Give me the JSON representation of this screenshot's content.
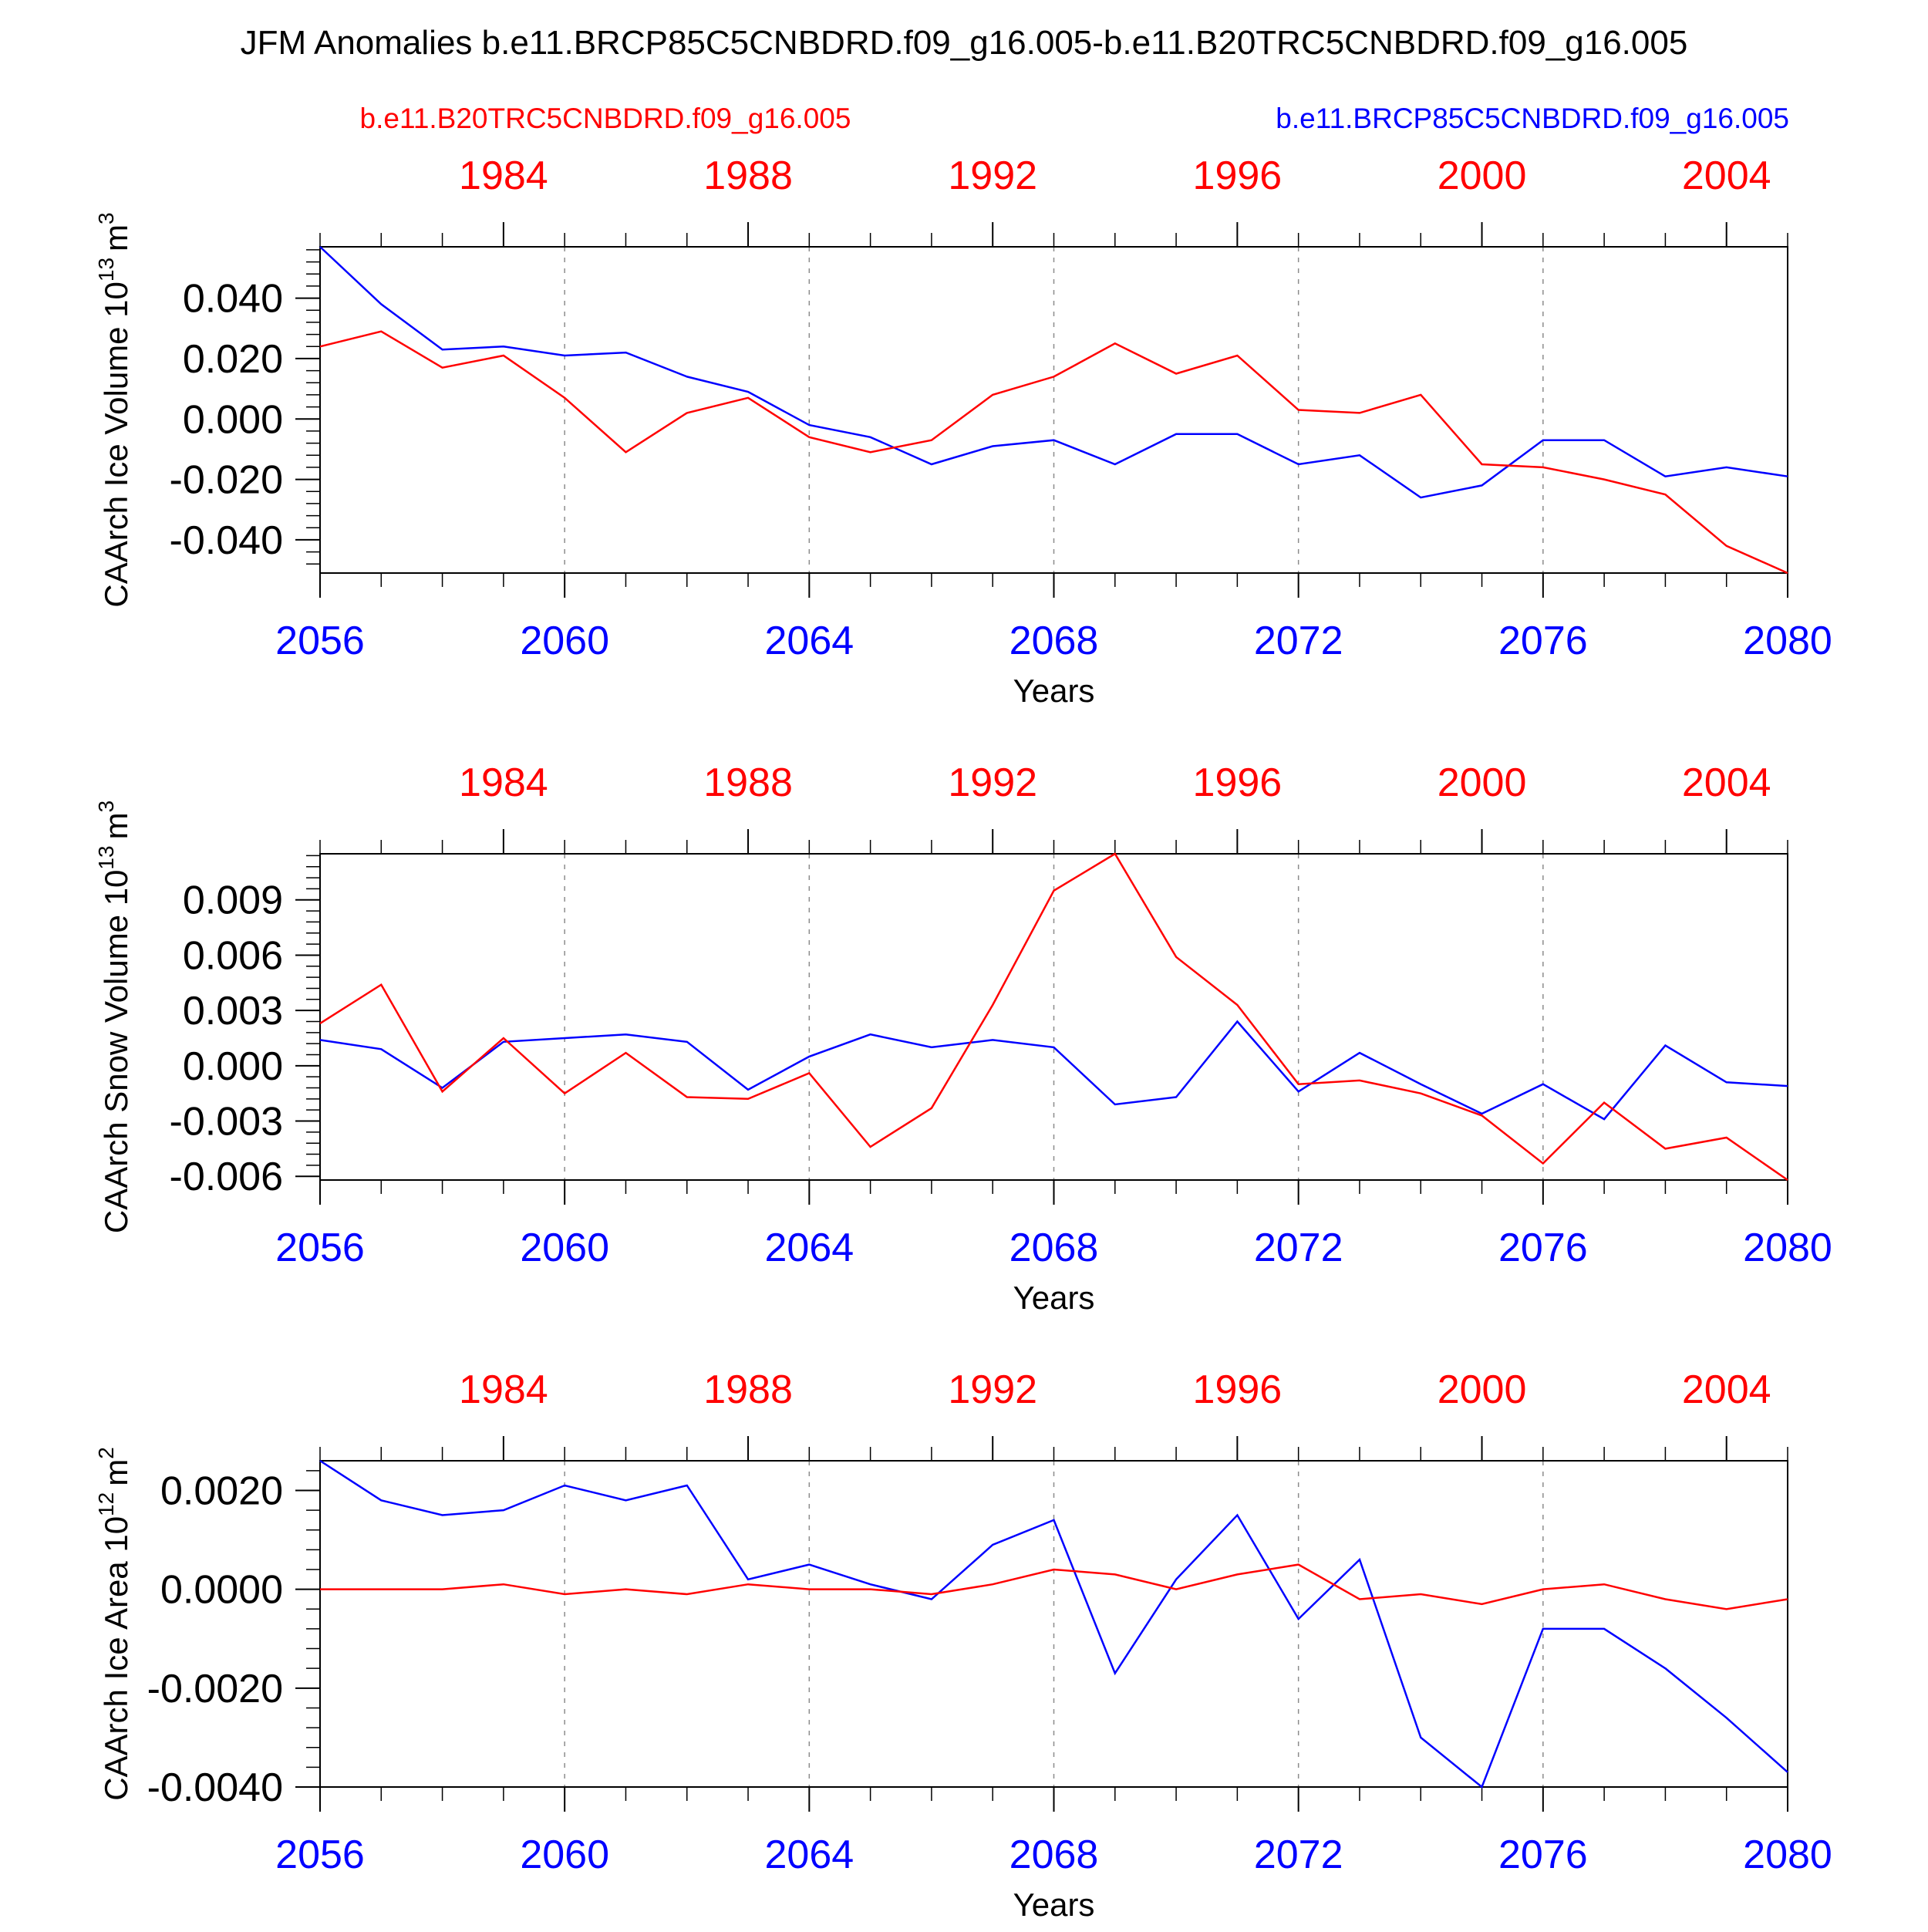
{
  "title": "JFM Anomalies b.e11.BRCP85C5CNBDRD.f09_g16.005-b.e11.B20TRC5CNBDRD.f09_g16.005",
  "legend": {
    "left": {
      "text": "b.e11.B20TRC5CNBDRD.f09_g16.005",
      "color": "#ff0000"
    },
    "right": {
      "text": "b.e11.BRCP85C5CNBDRD.f09_g16.005",
      "color": "#0000ff"
    }
  },
  "colors": {
    "red_series": "#ff0000",
    "blue_series": "#0000ff",
    "axis": "#000000",
    "grid": "#8c8c8c"
  },
  "chart_data": [
    {
      "type": "line",
      "ylabel": "CAArch Ice Volume 10",
      "ylabel_exp": "13",
      "ylabel_unit": "m",
      "ylabel_unit_exp": "3",
      "xlabel": "Years",
      "xlim": [
        2056,
        2080
      ],
      "ylim": [
        -0.051,
        0.057
      ],
      "yticks": [
        0.04,
        0.02,
        0.0,
        -0.02,
        -0.04
      ],
      "ytick_labels": [
        "0.040",
        "0.020",
        "0.000",
        "-0.020",
        "-0.040"
      ],
      "ytick_minor": 0.004,
      "bottom_ticks": [
        2056,
        2060,
        2064,
        2068,
        2072,
        2076,
        2080
      ],
      "top_ticks": [
        1984,
        1988,
        1992,
        1996,
        2000,
        2004
      ],
      "top_offset": 75,
      "grid_x": [
        2060,
        2064,
        2068,
        2072,
        2076
      ],
      "x": [
        2056,
        2057,
        2058,
        2059,
        2060,
        2061,
        2062,
        2063,
        2064,
        2065,
        2066,
        2067,
        2068,
        2069,
        2070,
        2071,
        2072,
        2073,
        2074,
        2075,
        2076,
        2077,
        2078,
        2079,
        2080
      ],
      "series": [
        {
          "color": "#0000ff",
          "values": [
            0.057,
            0.038,
            0.023,
            0.024,
            0.021,
            0.022,
            0.014,
            0.009,
            -0.002,
            -0.006,
            -0.015,
            -0.009,
            -0.007,
            -0.015,
            -0.005,
            -0.005,
            -0.015,
            -0.012,
            -0.026,
            -0.022,
            -0.007,
            -0.007,
            -0.019,
            -0.016,
            -0.019
          ]
        },
        {
          "color": "#ff0000",
          "values": [
            0.024,
            0.029,
            0.017,
            0.021,
            0.007,
            -0.011,
            0.002,
            0.007,
            -0.006,
            -0.011,
            -0.007,
            0.008,
            0.014,
            0.025,
            0.015,
            0.021,
            0.003,
            0.002,
            0.008,
            -0.015,
            -0.016,
            -0.02,
            -0.025,
            -0.042,
            -0.051
          ]
        }
      ]
    },
    {
      "type": "line",
      "ylabel": "CAArch Snow Volume 10",
      "ylabel_exp": "13",
      "ylabel_unit": "m",
      "ylabel_unit_exp": "3",
      "xlabel": "Years",
      "xlim": [
        2056,
        2080
      ],
      "ylim": [
        -0.0062,
        0.0115
      ],
      "yticks": [
        0.009,
        0.006,
        0.003,
        0.0,
        -0.003,
        -0.006
      ],
      "ytick_labels": [
        "0.009",
        "0.006",
        "0.003",
        "0.000",
        "-0.003",
        "-0.006"
      ],
      "ytick_minor": 0.0006,
      "bottom_ticks": [
        2056,
        2060,
        2064,
        2068,
        2072,
        2076,
        2080
      ],
      "top_ticks": [
        1984,
        1988,
        1992,
        1996,
        2000,
        2004
      ],
      "top_offset": 75,
      "grid_x": [
        2060,
        2064,
        2068,
        2072,
        2076
      ],
      "x": [
        2056,
        2057,
        2058,
        2059,
        2060,
        2061,
        2062,
        2063,
        2064,
        2065,
        2066,
        2067,
        2068,
        2069,
        2070,
        2071,
        2072,
        2073,
        2074,
        2075,
        2076,
        2077,
        2078,
        2079,
        2080
      ],
      "series": [
        {
          "color": "#0000ff",
          "values": [
            0.0014,
            0.0009,
            -0.0012,
            0.0013,
            0.0015,
            0.0017,
            0.0013,
            -0.0013,
            0.0005,
            0.0017,
            0.001,
            0.0014,
            0.001,
            -0.0021,
            -0.0017,
            0.0024,
            -0.0014,
            0.0007,
            -0.001,
            -0.0026,
            -0.001,
            -0.0029,
            0.0011,
            -0.0009,
            -0.0011
          ]
        },
        {
          "color": "#ff0000",
          "values": [
            0.0023,
            0.0044,
            -0.0014,
            0.0015,
            -0.0015,
            0.0007,
            -0.0017,
            -0.0018,
            -0.0004,
            -0.0044,
            -0.0023,
            0.0033,
            0.0095,
            0.0115,
            0.0059,
            0.0033,
            -0.001,
            -0.0008,
            -0.0015,
            -0.0027,
            -0.0053,
            -0.002,
            -0.0045,
            -0.0039,
            -0.0062
          ]
        }
      ]
    },
    {
      "type": "line",
      "ylabel": "CAArch Ice Area 10",
      "ylabel_exp": "12",
      "ylabel_unit": "m",
      "ylabel_unit_exp": "2",
      "xlabel": "Years",
      "xlim": [
        2056,
        2080
      ],
      "ylim": [
        -0.004,
        0.0026
      ],
      "yticks": [
        0.002,
        0.0,
        -0.002,
        -0.004
      ],
      "ytick_labels": [
        "0.0020",
        "0.0000",
        "-0.0020",
        "-0.0040"
      ],
      "ytick_minor": 0.0004,
      "bottom_ticks": [
        2056,
        2060,
        2064,
        2068,
        2072,
        2076,
        2080
      ],
      "top_ticks": [
        1984,
        1988,
        1992,
        1996,
        2000,
        2004
      ],
      "top_offset": 75,
      "grid_x": [
        2060,
        2064,
        2068,
        2072,
        2076
      ],
      "x": [
        2056,
        2057,
        2058,
        2059,
        2060,
        2061,
        2062,
        2063,
        2064,
        2065,
        2066,
        2067,
        2068,
        2069,
        2070,
        2071,
        2072,
        2073,
        2074,
        2075,
        2076,
        2077,
        2078,
        2079,
        2080
      ],
      "series": [
        {
          "color": "#0000ff",
          "values": [
            0.0026,
            0.0018,
            0.0015,
            0.0016,
            0.0021,
            0.0018,
            0.0021,
            0.0002,
            0.0005,
            0.0001,
            -0.0002,
            0.0009,
            0.0014,
            -0.0017,
            0.0002,
            0.0015,
            -0.0006,
            0.0006,
            -0.003,
            -0.004,
            -0.0008,
            -0.0008,
            -0.0016,
            -0.0026,
            -0.0037
          ]
        },
        {
          "color": "#ff0000",
          "values": [
            0.0,
            0.0,
            -0.0,
            0.0001,
            -0.0001,
            -0.0,
            -0.0001,
            0.0001,
            0.0,
            0.0,
            -0.0001,
            0.0001,
            0.0004,
            0.0003,
            -0.0,
            0.0003,
            0.0005,
            -0.0002,
            -0.0001,
            -0.0003,
            -0.0,
            0.0001,
            -0.0002,
            -0.0004,
            -0.0002
          ]
        }
      ]
    }
  ]
}
